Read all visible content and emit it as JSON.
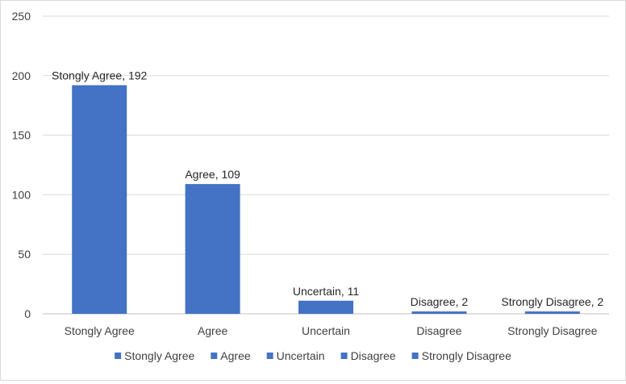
{
  "chart_data": {
    "type": "bar",
    "categories": [
      "Stongly Agree",
      "Agree",
      "Uncertain",
      "Disagree",
      "Strongly Disagree"
    ],
    "values": [
      192,
      109,
      11,
      2,
      2
    ],
    "data_labels": [
      "Stongly Agree, 192",
      "Agree, 109",
      "Uncertain, 11",
      "Disagree, 2",
      "Strongly Disagree, 2"
    ],
    "ylim": [
      0,
      250
    ],
    "yticks": [
      "0",
      "50",
      "100",
      "150",
      "200",
      "250"
    ],
    "title": "",
    "xlabel": "",
    "ylabel": "",
    "grid": true,
    "legend_position": "bottom",
    "legend": [
      "Stongly Agree",
      "Agree",
      "Uncertain",
      "Disagree",
      "Strongly Disagree"
    ],
    "bar_color": "#4472C4"
  }
}
